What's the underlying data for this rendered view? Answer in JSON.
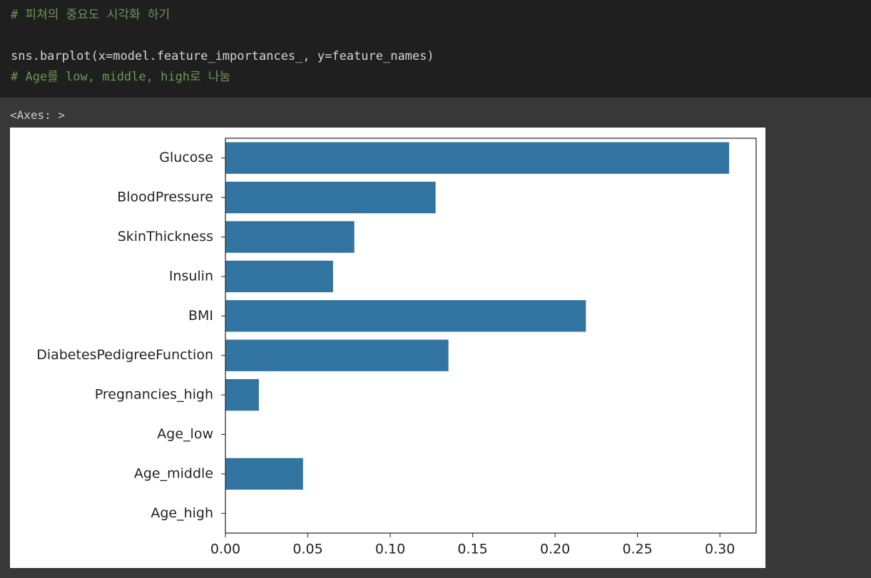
{
  "cell": {
    "code_lines": [
      "# 피쳐의 중요도 시각화 하기",
      "",
      "sns.barplot(x=model.feature_importances_, y=feature_names)",
      "# Age를 low, middle, high로 나눔"
    ],
    "output_text": "<Axes: >"
  },
  "chart_data": {
    "type": "barh",
    "categories": [
      "Glucose",
      "BloodPressure",
      "SkinThickness",
      "Insulin",
      "BMI",
      "DiabetesPedigreeFunction",
      "Pregnancies_high",
      "Age_low",
      "Age_middle",
      "Age_high"
    ],
    "values": [
      0.3056,
      0.1275,
      0.0782,
      0.0653,
      0.2187,
      0.1353,
      0.0203,
      0,
      0.0471,
      0
    ],
    "color": "#3274a1",
    "xlim": [
      0,
      0.322
    ],
    "xticks": [
      {
        "value": 0,
        "label": "0.00"
      },
      {
        "value": 0.05,
        "label": "0.05"
      },
      {
        "value": 0.1,
        "label": "0.10"
      },
      {
        "value": 0.15,
        "label": "0.15"
      },
      {
        "value": 0.2,
        "label": "0.20"
      },
      {
        "value": 0.25,
        "label": "0.25"
      },
      {
        "value": 0.3,
        "label": "0.30"
      }
    ],
    "grid": false
  }
}
